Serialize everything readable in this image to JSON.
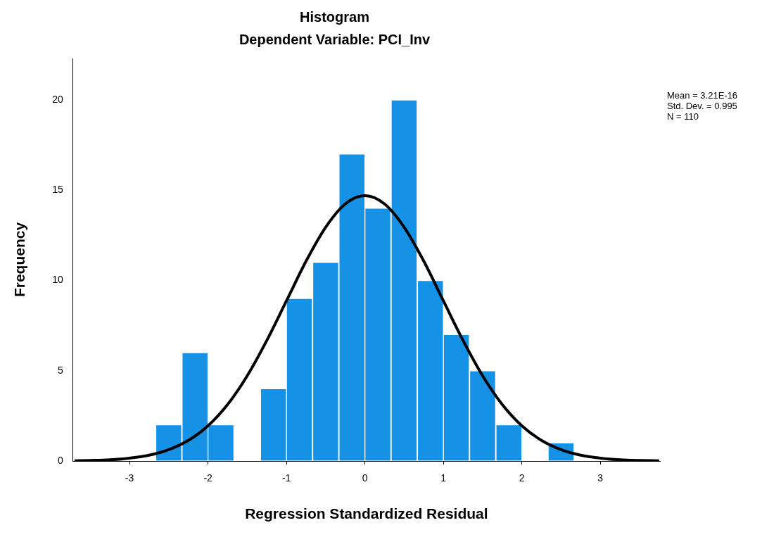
{
  "chart_data": {
    "type": "histogram",
    "title": "Histogram",
    "subtitle": "Dependent Variable: PCI_Inv",
    "xlabel": "Regression Standardized Residual",
    "ylabel": "Frequency",
    "bins": [
      -2.67,
      -2.33,
      -2,
      -1.67,
      -1.33,
      -1,
      -0.67,
      -0.33,
      0,
      0.33,
      0.67,
      1,
      1.33,
      1.67,
      2,
      2.33,
      2.67
    ],
    "values": [
      2,
      6,
      2,
      0,
      4,
      9,
      11,
      17,
      14,
      20,
      10,
      7,
      5,
      2,
      0,
      1
    ],
    "color": "#1591e6",
    "series": [
      {
        "type": "line",
        "color": "#000000",
        "x": [
          -3.7,
          -3.5,
          -3.25,
          -3,
          -2.75,
          -2.5,
          -2.25,
          -2,
          -1.75,
          -1.5,
          -1.25,
          -1,
          -0.75,
          -0.5,
          -0.25,
          0,
          0.25,
          0.5,
          0.75,
          1,
          1.25,
          1.5,
          1.75,
          2,
          2.25,
          2.5,
          2.75,
          3,
          3.25,
          3.5,
          3.75
        ],
        "values": [
          0.01,
          0.03,
          0.07,
          0.16,
          0.32,
          0.63,
          1.14,
          1.95,
          3.13,
          4.72,
          6.68,
          8.87,
          11.07,
          12.95,
          14.24,
          14.7,
          14.24,
          12.95,
          11.07,
          8.87,
          6.68,
          4.72,
          3.13,
          1.95,
          1.14,
          0.63,
          0.32,
          0.16,
          0.07,
          0.03,
          0.01
        ]
      }
    ],
    "xlim": [
      -3.72,
      3.76
    ],
    "xticks": [
      -3,
      -2,
      -1,
      0,
      1,
      2,
      3
    ],
    "ylim": [
      0,
      22.3
    ],
    "yticks": [
      0,
      5,
      10,
      15,
      20
    ],
    "grid": false,
    "legend": false,
    "marker": "none",
    "line_style": "solid",
    "annotations": [
      "Mean = 3.21E-16",
      "Std. Dev. = 0.995",
      "N = 110"
    ]
  }
}
